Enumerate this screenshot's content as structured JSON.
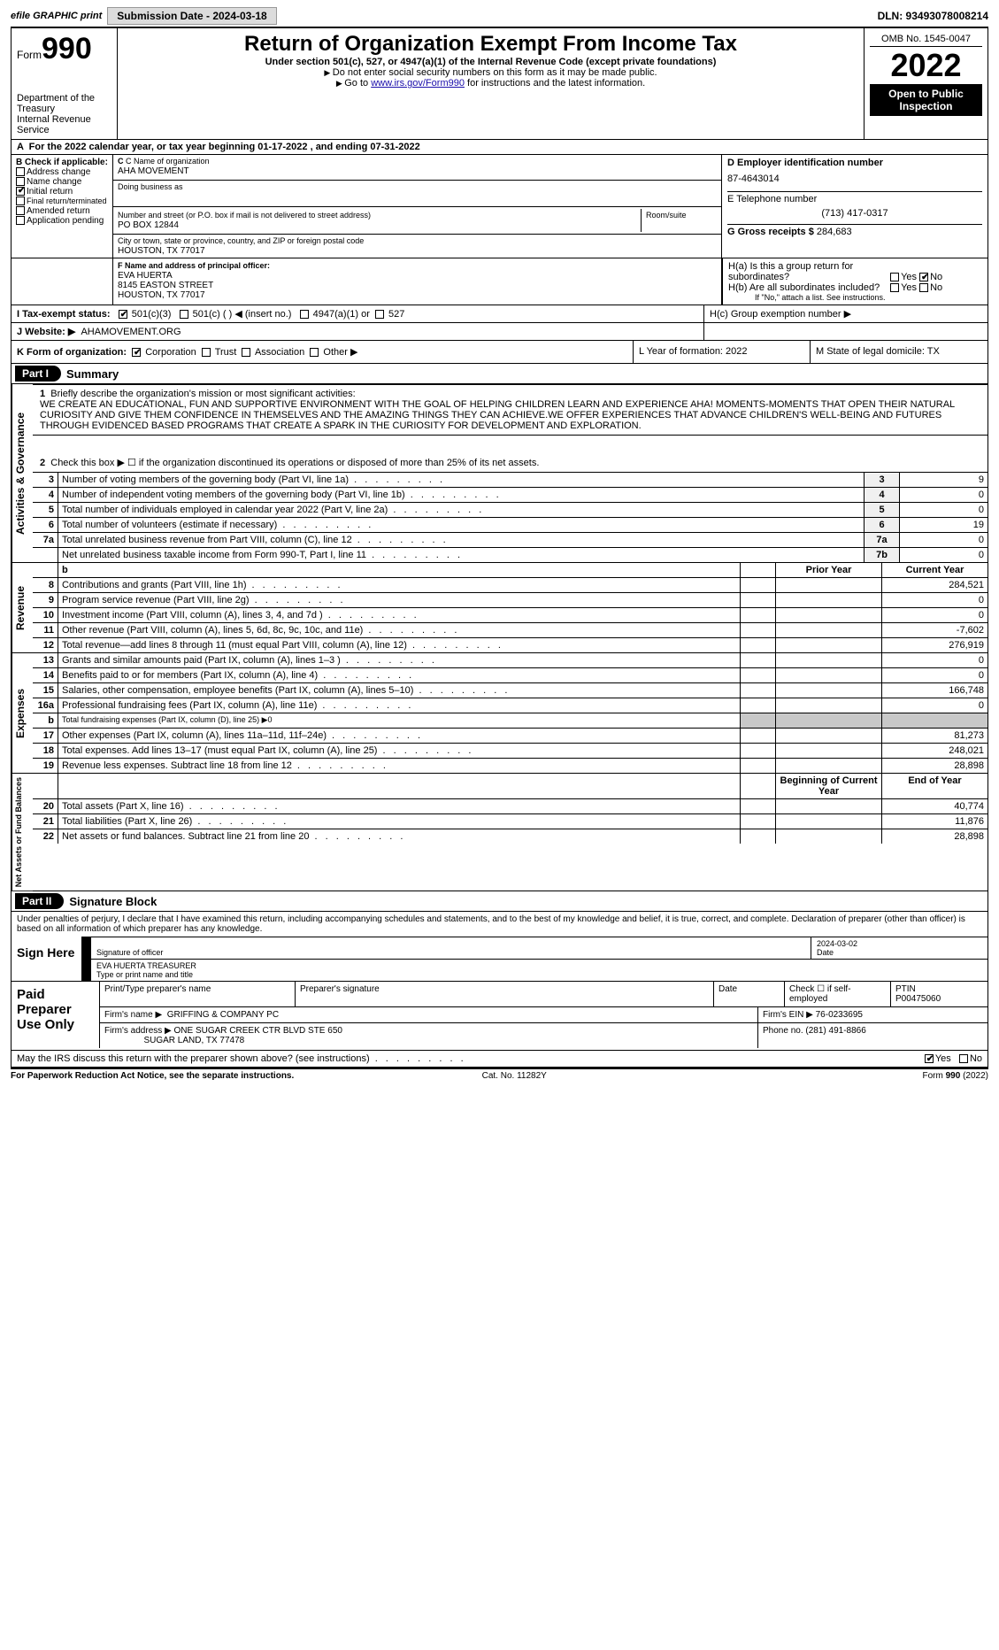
{
  "topbar": {
    "efile": "efile GRAPHIC print",
    "submission": "Submission Date - 2024-03-18",
    "dln": "DLN: 93493078008214"
  },
  "header": {
    "form_label": "Form",
    "form_num": "990",
    "dept1": "Department of the Treasury",
    "dept2": "Internal Revenue Service",
    "title": "Return of Organization Exempt From Income Tax",
    "sub": "Under section 501(c), 527, or 4947(a)(1) of the Internal Revenue Code (except private foundations)",
    "note1": "Do not enter social security numbers on this form as it may be made public.",
    "note2_pre": "Go to ",
    "note2_link": "www.irs.gov/Form990",
    "note2_post": " for instructions and the latest information.",
    "omb": "OMB No. 1545-0047",
    "year": "2022",
    "open": "Open to Public Inspection"
  },
  "sectA": "For the 2022 calendar year, or tax year beginning 01-17-2022    , and ending 07-31-2022",
  "boxB": {
    "title": "B Check if applicable:",
    "addr": "Address change",
    "name": "Name change",
    "init": "Initial return",
    "final": "Final return/terminated",
    "amend": "Amended return",
    "app": "Application pending"
  },
  "boxC": {
    "label": "C Name of organization",
    "org": "AHA MOVEMENT",
    "dba": "Doing business as",
    "street_label": "Number and street (or P.O. box if mail is not delivered to street address)",
    "room": "Room/suite",
    "street": "PO BOX 12844",
    "city_label": "City or town, state or province, country, and ZIP or foreign postal code",
    "city": "HOUSTON, TX  77017"
  },
  "boxD": {
    "label": "D Employer identification number",
    "val": "87-4643014"
  },
  "boxE": {
    "label": "E Telephone number",
    "val": "(713) 417-0317"
  },
  "boxG": {
    "label": "G Gross receipts $",
    "val": "284,683"
  },
  "boxF": {
    "label": "F  Name and address of principal officer:",
    "name": "EVA HUERTA",
    "addr1": "8145 EASTON STREET",
    "addr2": "HOUSTON, TX  77017"
  },
  "boxH": {
    "ha": "H(a)  Is this a group return for subordinates?",
    "hb": "H(b)  Are all subordinates included?",
    "hbnote": "If \"No,\" attach a list. See instructions.",
    "hc": "H(c)  Group exemption number ▶",
    "yes": "Yes",
    "no": "No"
  },
  "taxexempt": {
    "label": "I   Tax-exempt status:",
    "c3": "501(c)(3)",
    "c": "501(c) (  ) ◀ (insert no.)",
    "a1": "4947(a)(1) or",
    "s527": "527"
  },
  "website": {
    "label": "J   Website: ▶",
    "val": "AHAMOVEMENT.ORG"
  },
  "korg": {
    "label": "K Form of organization:",
    "corp": "Corporation",
    "trust": "Trust",
    "assoc": "Association",
    "other": "Other ▶",
    "L": "L Year of formation: 2022",
    "M": "M State of legal domicile: TX"
  },
  "part1": {
    "tag": "Part I",
    "title": "Summary",
    "l1": "Briefly describe the organization's mission or most significant activities:",
    "mission": "WE CREATE AN EDUCATIONAL, FUN AND SUPPORTIVE ENVIRONMENT WITH THE GOAL OF HELPING CHILDREN LEARN AND EXPERIENCE AHA! MOMENTS-MOMENTS THAT OPEN THEIR NATURAL CURIOSITY AND GIVE THEM CONFIDENCE IN THEMSELVES AND THE AMAZING THINGS THEY CAN ACHIEVE.WE OFFER EXPERIENCES THAT ADVANCE CHILDREN'S WELL-BEING AND FUTURES THROUGH EVIDENCED BASED PROGRAMS THAT CREATE A SPARK IN THE CURIOSITY FOR DEVELOPMENT AND EXPLORATION.",
    "l2": "Check this box ▶ ☐  if the organization discontinued its operations or disposed of more than 25% of its net assets.",
    "vlabels": {
      "ag": "Activities & Governance",
      "rev": "Revenue",
      "exp": "Expenses",
      "net": "Net Assets or\nFund Balances"
    }
  },
  "govRows": [
    {
      "n": "3",
      "t": "Number of voting members of the governing body (Part VI, line 1a)",
      "b": "3",
      "v": "9"
    },
    {
      "n": "4",
      "t": "Number of independent voting members of the governing body (Part VI, line 1b)",
      "b": "4",
      "v": "0"
    },
    {
      "n": "5",
      "t": "Total number of individuals employed in calendar year 2022 (Part V, line 2a)",
      "b": "5",
      "v": "0"
    },
    {
      "n": "6",
      "t": "Total number of volunteers (estimate if necessary)",
      "b": "6",
      "v": "19"
    },
    {
      "n": "7a",
      "t": "Total unrelated business revenue from Part VIII, column (C), line 12",
      "b": "7a",
      "v": "0"
    },
    {
      "n": "",
      "t": "Net unrelated business taxable income from Form 990-T, Part I, line 11",
      "b": "7b",
      "v": "0"
    }
  ],
  "cols": {
    "prior": "Prior Year",
    "curr": "Current Year",
    "beg": "Beginning of Current Year",
    "end": "End of Year"
  },
  "revRows": [
    {
      "n": "8",
      "t": "Contributions and grants (Part VIII, line 1h)",
      "cv": "284,521"
    },
    {
      "n": "9",
      "t": "Program service revenue (Part VIII, line 2g)",
      "cv": "0"
    },
    {
      "n": "10",
      "t": "Investment income (Part VIII, column (A), lines 3, 4, and 7d )",
      "cv": "0"
    },
    {
      "n": "11",
      "t": "Other revenue (Part VIII, column (A), lines 5, 6d, 8c, 9c, 10c, and 11e)",
      "cv": "-7,602"
    },
    {
      "n": "12",
      "t": "Total revenue—add lines 8 through 11 (must equal Part VIII, column (A), line 12)",
      "cv": "276,919"
    }
  ],
  "expRows": [
    {
      "n": "13",
      "t": "Grants and similar amounts paid (Part IX, column (A), lines 1–3 )",
      "cv": "0"
    },
    {
      "n": "14",
      "t": "Benefits paid to or for members (Part IX, column (A), line 4)",
      "cv": "0"
    },
    {
      "n": "15",
      "t": "Salaries, other compensation, employee benefits (Part IX, column (A), lines 5–10)",
      "cv": "166,748"
    },
    {
      "n": "16a",
      "t": "Professional fundraising fees (Part IX, column (A), line 11e)",
      "cv": "0"
    },
    {
      "n": "b",
      "t": "Total fundraising expenses (Part IX, column (D), line 25) ▶0",
      "grey": true
    },
    {
      "n": "17",
      "t": "Other expenses (Part IX, column (A), lines 11a–11d, 11f–24e)",
      "cv": "81,273"
    },
    {
      "n": "18",
      "t": "Total expenses. Add lines 13–17 (must equal Part IX, column (A), line 25)",
      "cv": "248,021"
    },
    {
      "n": "19",
      "t": "Revenue less expenses. Subtract line 18 from line 12",
      "cv": "28,898"
    }
  ],
  "netRows": [
    {
      "n": "20",
      "t": "Total assets (Part X, line 16)",
      "cv": "40,774"
    },
    {
      "n": "21",
      "t": "Total liabilities (Part X, line 26)",
      "cv": "11,876"
    },
    {
      "n": "22",
      "t": "Net assets or fund balances. Subtract line 21 from line 20",
      "cv": "28,898"
    }
  ],
  "part2": {
    "tag": "Part II",
    "title": "Signature Block",
    "decl": "Under penalties of perjury, I declare that I have examined this return, including accompanying schedules and statements, and to the best of my knowledge and belief, it is true, correct, and complete. Declaration of preparer (other than officer) is based on all information of which preparer has any knowledge.",
    "sign": "Sign Here",
    "sig_off": "Signature of officer",
    "date": "Date",
    "date_v": "2024-03-02",
    "name_title": "EVA HUERTA  TREASURER",
    "type_name": "Type or print name and title",
    "paid": "Paid Preparer Use Only",
    "pname": "Print/Type preparer's name",
    "psig": "Preparer's signature",
    "pdate": "Date",
    "pchk": "Check ☐ if self-employed",
    "ptin": "PTIN",
    "ptin_v": "P00475060",
    "firm": "Firm's name   ▶",
    "firm_v": "GRIFFING & COMPANY PC",
    "fein": "Firm's EIN ▶",
    "fein_v": "76-0233695",
    "faddr": "Firm's address ▶",
    "faddr_v1": "ONE SUGAR CREEK CTR BLVD STE 650",
    "faddr_v2": "SUGAR LAND, TX  77478",
    "phone": "Phone no.",
    "phone_v": "(281) 491-8866",
    "may": "May the IRS discuss this return with the preparer shown above? (see instructions)",
    "yes": "Yes",
    "no": "No"
  },
  "footer": {
    "pra": "For Paperwork Reduction Act Notice, see the separate instructions.",
    "cat": "Cat. No. 11282Y",
    "form": "Form 990 (2022)"
  }
}
